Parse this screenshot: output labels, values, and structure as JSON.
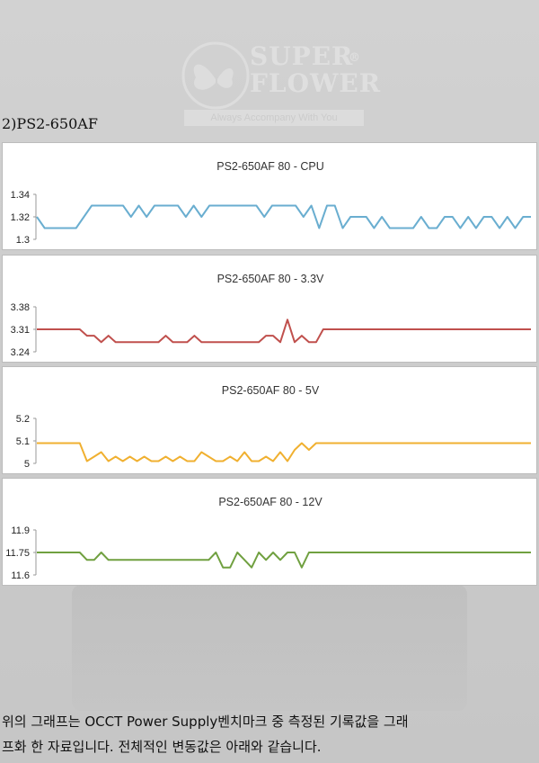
{
  "logo": {
    "brand": "SUPER\nFLOWER",
    "mark": "®",
    "tagline": "Always Accompany With You"
  },
  "section_title": "2)PS2-650AF",
  "chart_data": [
    {
      "type": "line",
      "title": "PS2-650AF 80 - CPU",
      "color": "#6aaed0",
      "ylim": [
        1.3,
        1.34
      ],
      "yticks": [
        "1.34",
        "1.32",
        "1.3"
      ],
      "values": [
        1.32,
        1.31,
        1.31,
        1.31,
        1.31,
        1.31,
        1.32,
        1.33,
        1.33,
        1.33,
        1.33,
        1.33,
        1.32,
        1.33,
        1.32,
        1.33,
        1.33,
        1.33,
        1.33,
        1.32,
        1.33,
        1.32,
        1.33,
        1.33,
        1.33,
        1.33,
        1.33,
        1.33,
        1.33,
        1.32,
        1.33,
        1.33,
        1.33,
        1.33,
        1.32,
        1.33,
        1.31,
        1.33,
        1.33,
        1.31,
        1.32,
        1.32,
        1.32,
        1.31,
        1.32,
        1.31,
        1.31,
        1.31,
        1.31,
        1.32,
        1.31,
        1.31,
        1.32,
        1.32,
        1.31,
        1.32,
        1.31,
        1.32,
        1.32,
        1.31,
        1.32,
        1.31,
        1.32,
        1.32
      ]
    },
    {
      "type": "line",
      "title": "PS2-650AF 80 - 3.3V",
      "color": "#c0504d",
      "ylim": [
        3.24,
        3.38
      ],
      "yticks": [
        "3.38",
        "3.31",
        "3.24"
      ],
      "values": [
        3.31,
        3.31,
        3.31,
        3.31,
        3.31,
        3.31,
        3.31,
        3.29,
        3.29,
        3.27,
        3.29,
        3.27,
        3.27,
        3.27,
        3.27,
        3.27,
        3.27,
        3.27,
        3.29,
        3.27,
        3.27,
        3.27,
        3.29,
        3.27,
        3.27,
        3.27,
        3.27,
        3.27,
        3.27,
        3.27,
        3.27,
        3.27,
        3.29,
        3.29,
        3.27,
        3.34,
        3.27,
        3.29,
        3.27,
        3.27,
        3.31,
        3.31,
        3.31,
        3.31,
        3.31,
        3.31,
        3.31,
        3.31,
        3.31,
        3.31,
        3.31,
        3.31,
        3.31,
        3.31,
        3.31,
        3.31,
        3.31,
        3.31,
        3.31,
        3.31,
        3.31,
        3.31,
        3.31,
        3.31,
        3.31,
        3.31,
        3.31,
        3.31,
        3.31,
        3.31
      ]
    },
    {
      "type": "line",
      "title": "PS2-650AF 80 - 5V",
      "color": "#f0b030",
      "ylim": [
        5,
        5.2
      ],
      "yticks": [
        "5.2",
        "5.1",
        "5"
      ],
      "values": [
        5.09,
        5.09,
        5.09,
        5.09,
        5.09,
        5.09,
        5.09,
        5.01,
        5.03,
        5.05,
        5.01,
        5.03,
        5.01,
        5.03,
        5.01,
        5.03,
        5.01,
        5.01,
        5.03,
        5.01,
        5.03,
        5.01,
        5.01,
        5.05,
        5.03,
        5.01,
        5.01,
        5.03,
        5.01,
        5.05,
        5.01,
        5.01,
        5.03,
        5.01,
        5.05,
        5.01,
        5.06,
        5.09,
        5.06,
        5.09,
        5.09,
        5.09,
        5.09,
        5.09,
        5.09,
        5.09,
        5.09,
        5.09,
        5.09,
        5.09,
        5.09,
        5.09,
        5.09,
        5.09,
        5.09,
        5.09,
        5.09,
        5.09,
        5.09,
        5.09,
        5.09,
        5.09,
        5.09,
        5.09,
        5.09,
        5.09,
        5.09,
        5.09,
        5.09,
        5.09
      ]
    },
    {
      "type": "line",
      "title": "PS2-650AF 80 - 12V",
      "color": "#70a040",
      "ylim": [
        11.6,
        11.9
      ],
      "yticks": [
        "11.9",
        "11.75",
        "11.6"
      ],
      "values": [
        11.75,
        11.75,
        11.75,
        11.75,
        11.75,
        11.75,
        11.75,
        11.7,
        11.7,
        11.75,
        11.7,
        11.7,
        11.7,
        11.7,
        11.7,
        11.7,
        11.7,
        11.7,
        11.7,
        11.7,
        11.7,
        11.7,
        11.7,
        11.7,
        11.7,
        11.75,
        11.65,
        11.65,
        11.75,
        11.7,
        11.65,
        11.75,
        11.7,
        11.75,
        11.7,
        11.75,
        11.75,
        11.65,
        11.75,
        11.75,
        11.75,
        11.75,
        11.75,
        11.75,
        11.75,
        11.75,
        11.75,
        11.75,
        11.75,
        11.75,
        11.75,
        11.75,
        11.75,
        11.75,
        11.75,
        11.75,
        11.75,
        11.75,
        11.75,
        11.75,
        11.75,
        11.75,
        11.75,
        11.75,
        11.75,
        11.75,
        11.75,
        11.75,
        11.75,
        11.75
      ]
    }
  ],
  "caption": {
    "line1": "위의 그래프는 OCCT Power Supply벤치마크 중 측정된 기록값을 그래",
    "line2": "프화 한 자료입니다. 전체적인 변동값은 아래와 같습니다."
  }
}
